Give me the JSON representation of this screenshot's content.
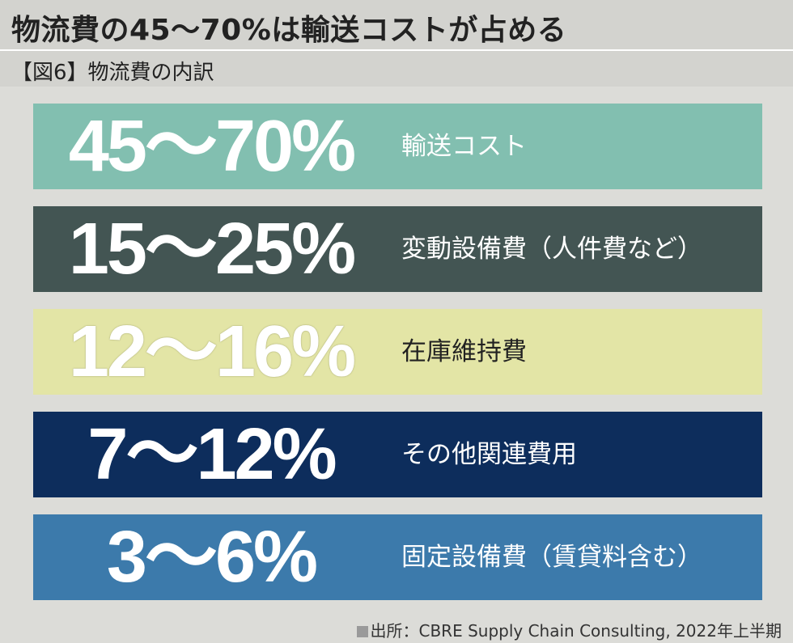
{
  "header": {
    "title": "物流費の45〜70%は輸送コストが占める",
    "subtitle": "【図6】物流費の内訳"
  },
  "chart_data": {
    "type": "table",
    "categories": [
      "輸送コスト",
      "変動設備費（人件費など）",
      "在庫維持費",
      "その他関連費用",
      "固定設備費（賃貸料含む）"
    ],
    "ranges_percent": [
      [
        45,
        70
      ],
      [
        15,
        25
      ],
      [
        12,
        16
      ],
      [
        7,
        12
      ],
      [
        3,
        6
      ]
    ],
    "labels": [
      "45〜70%",
      "15〜25%",
      "12〜16%",
      "7〜12%",
      "3〜6%"
    ],
    "colors": [
      "#82bfb0",
      "#435553",
      "#e3e5a6",
      "#0d2d5c",
      "#3c7aab"
    ],
    "text_colors": [
      "#ffffff",
      "#ffffff",
      "#ffffff",
      "#ffffff",
      "#ffffff"
    ],
    "category_text_colors": [
      "#ffffff",
      "#ffffff",
      "#222222",
      "#ffffff",
      "#ffffff"
    ],
    "title": "【図6】物流費の内訳"
  },
  "footer": {
    "source": "出所：CBRE Supply Chain Consulting, 2022年上半期"
  }
}
